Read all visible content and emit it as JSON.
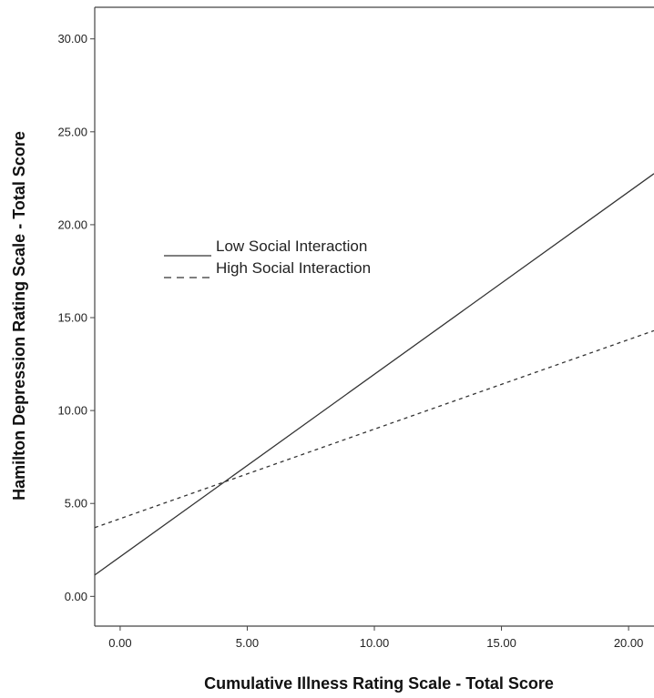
{
  "chart_data": {
    "type": "line",
    "title": "",
    "xlabel": "Cumulative Illness Rating Scale - Total Score",
    "ylabel": "Hamilton Depression Rating Scale - Total Score",
    "xlim": [
      -1.0,
      21.0
    ],
    "ylim": [
      -1.6,
      31.7
    ],
    "x_ticks": [
      0,
      5,
      10,
      15,
      20
    ],
    "x_tick_labels": [
      "0.00",
      "5.00",
      "10.00",
      "15.00",
      "20.00"
    ],
    "y_ticks": [
      0,
      5,
      10,
      15,
      20,
      25,
      30
    ],
    "y_tick_labels": [
      "0.00",
      "5.00",
      "10.00",
      "15.00",
      "20.00",
      "25.00",
      "30.00"
    ],
    "grid": false,
    "legend_position": "center-left",
    "series": [
      {
        "name": "Low Social Interaction",
        "style": "solid",
        "color": "#333333",
        "x": [
          -1.0,
          21.0
        ],
        "y": [
          1.15,
          22.75
        ]
      },
      {
        "name": "High Social Interaction",
        "style": "dashed",
        "color": "#333333",
        "x": [
          -1.0,
          21.0
        ],
        "y": [
          3.7,
          14.3
        ]
      }
    ]
  }
}
